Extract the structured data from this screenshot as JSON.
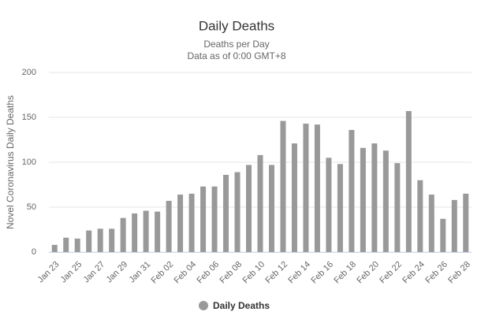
{
  "chart_data": {
    "type": "bar",
    "title": "Daily Deaths",
    "subtitle": [
      "Deaths per Day",
      "Data as of 0:00 GMT+8"
    ],
    "y_label": "Novel Coronavirus Daily Deaths",
    "categories": [
      "Jan 23",
      null,
      "Jan 25",
      null,
      "Jan 27",
      null,
      "Jan 29",
      null,
      "Jan 31",
      null,
      "Feb 02",
      null,
      "Feb 04",
      null,
      "Feb 06",
      null,
      "Feb 08",
      null,
      "Feb 10",
      null,
      "Feb 12",
      null,
      "Feb 14",
      null,
      "Feb 16",
      null,
      "Feb 18",
      null,
      "Feb 20",
      null,
      "Feb 22",
      null,
      "Feb 24",
      null,
      "Feb 26",
      null,
      "Feb 28"
    ],
    "series": [
      {
        "name": "Daily Deaths",
        "color": "#999999",
        "values": [
          8,
          16,
          15,
          24,
          26,
          26,
          38,
          43,
          46,
          45,
          57,
          64,
          65,
          73,
          73,
          86,
          89,
          97,
          108,
          97,
          146,
          121,
          143,
          142,
          105,
          98,
          136,
          116,
          121,
          113,
          99,
          157,
          80,
          64,
          37,
          58,
          65
        ]
      }
    ],
    "ylim": [
      0,
      200
    ],
    "yticks": [
      0,
      50,
      100,
      150,
      200
    ],
    "grid": true,
    "legend": "bottom"
  }
}
